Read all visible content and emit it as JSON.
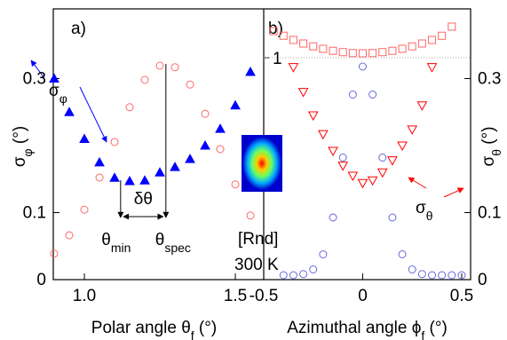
{
  "chart_data": [
    {
      "type": "scatter",
      "label": "a)",
      "xlabel": [
        "Polar angle θ",
        "f",
        " (°)"
      ],
      "ylabel": [
        "σ",
        "φ",
        " (°)"
      ],
      "xlim": [
        0.897,
        1.594
      ],
      "xticks": [
        {
          "value": 1,
          "label": "1.0"
        },
        {
          "value": 1.5,
          "label": "1.5"
        }
      ],
      "ylim": [
        0,
        0.404
      ],
      "yticks": [
        0,
        0.1,
        0.3
      ],
      "y2lim": [
        0,
        1.22
      ],
      "series": [
        {
          "marker": "triangle-up",
          "filled": true,
          "color": "#0000ff",
          "x": [
            0.9,
            0.95,
            1.0,
            1.05,
            1.1,
            1.15,
            1.2,
            1.25,
            1.3,
            1.35,
            1.4,
            1.45,
            1.5,
            1.55
          ],
          "values": [
            0.3,
            0.25,
            0.21,
            0.175,
            0.152,
            0.147,
            0.148,
            0.16,
            0.168,
            0.18,
            0.2,
            0.225,
            0.26,
            0.31
          ]
        },
        {
          "marker": "circle",
          "filled": false,
          "color": "#ff6666",
          "axis": "y2",
          "x": [
            0.9,
            0.95,
            1.0,
            1.05,
            1.1,
            1.15,
            1.2,
            1.25,
            1.3,
            1.35,
            1.4,
            1.45,
            1.5,
            1.55
          ],
          "values": [
            0.117,
            0.2,
            0.315,
            0.46,
            0.62,
            0.777,
            0.9,
            0.964,
            0.957,
            0.879,
            0.747,
            0.588,
            0.429,
            0.289
          ]
        }
      ],
      "annotations": [
        {
          "parts": [
            "σ",
            "φ"
          ],
          "color": "#0000ff"
        },
        {
          "text": "δθ"
        },
        {
          "parts": [
            "θ",
            "min"
          ],
          "x": 1.12
        },
        {
          "parts": [
            "θ",
            "spec"
          ],
          "x": 1.27
        },
        {
          "text": "[Rnd]"
        },
        {
          "text": "300 K"
        }
      ]
    },
    {
      "type": "scatter",
      "label": "b)",
      "xlabel": [
        "Azimuthal angle ϕ",
        "f",
        " (°)"
      ],
      "ylabel": [
        "σ",
        "θ",
        " (°)"
      ],
      "xlim": [
        -0.5,
        0.545
      ],
      "xticks": [
        -0.5,
        0,
        0.5
      ],
      "ylim": [
        0,
        0.404
      ],
      "yticks": [
        0,
        0.1,
        0.3
      ],
      "y2lim": [
        0,
        1.22
      ],
      "y2ticks": [
        1
      ],
      "series": [
        {
          "marker": "square",
          "filled": false,
          "color": "#ff6666",
          "axis": "y2",
          "x": [
            -0.45,
            -0.4,
            -0.35,
            -0.3,
            -0.25,
            -0.2,
            -0.15,
            -0.1,
            -0.05,
            0,
            0.05,
            0.1,
            0.15,
            0.2,
            0.25,
            0.3,
            0.35,
            0.4,
            0.45
          ],
          "values": [
            1.12,
            1.099,
            1.08,
            1.064,
            1.051,
            1.04,
            1.031,
            1.025,
            1.021,
            1.02,
            1.021,
            1.025,
            1.031,
            1.04,
            1.051,
            1.064,
            1.08,
            1.099,
            1.14
          ]
        },
        {
          "marker": "triangle-down",
          "filled": false,
          "color": "#ff0000",
          "x": [
            -0.35,
            -0.3,
            -0.25,
            -0.2,
            -0.15,
            -0.1,
            -0.05,
            0,
            0.05,
            0.1,
            0.15,
            0.2,
            0.25,
            0.3,
            0.35
          ],
          "values": [
            0.317,
            0.28,
            0.245,
            0.217,
            0.192,
            0.17,
            0.155,
            0.144,
            0.148,
            0.16,
            0.178,
            0.2,
            0.224,
            0.26,
            0.317
          ]
        },
        {
          "marker": "circle",
          "filled": false,
          "color": "#6666dd",
          "axis": "y2",
          "x": [
            -0.4,
            -0.35,
            -0.3,
            -0.25,
            -0.2,
            -0.15,
            -0.1,
            -0.05,
            0,
            0.05,
            0.1,
            0.15,
            0.2,
            0.25,
            0.3,
            0.35,
            0.4,
            0.45,
            0.5
          ],
          "values": [
            0.02,
            0.02,
            0.025,
            0.046,
            0.114,
            0.28,
            0.55,
            0.834,
            0.96,
            0.834,
            0.55,
            0.28,
            0.114,
            0.046,
            0.025,
            0.02,
            0.02,
            0.02,
            0.02
          ]
        }
      ],
      "annotations": [
        {
          "parts": [
            "σ",
            "θ"
          ],
          "color": "#ff0000"
        }
      ]
    }
  ]
}
